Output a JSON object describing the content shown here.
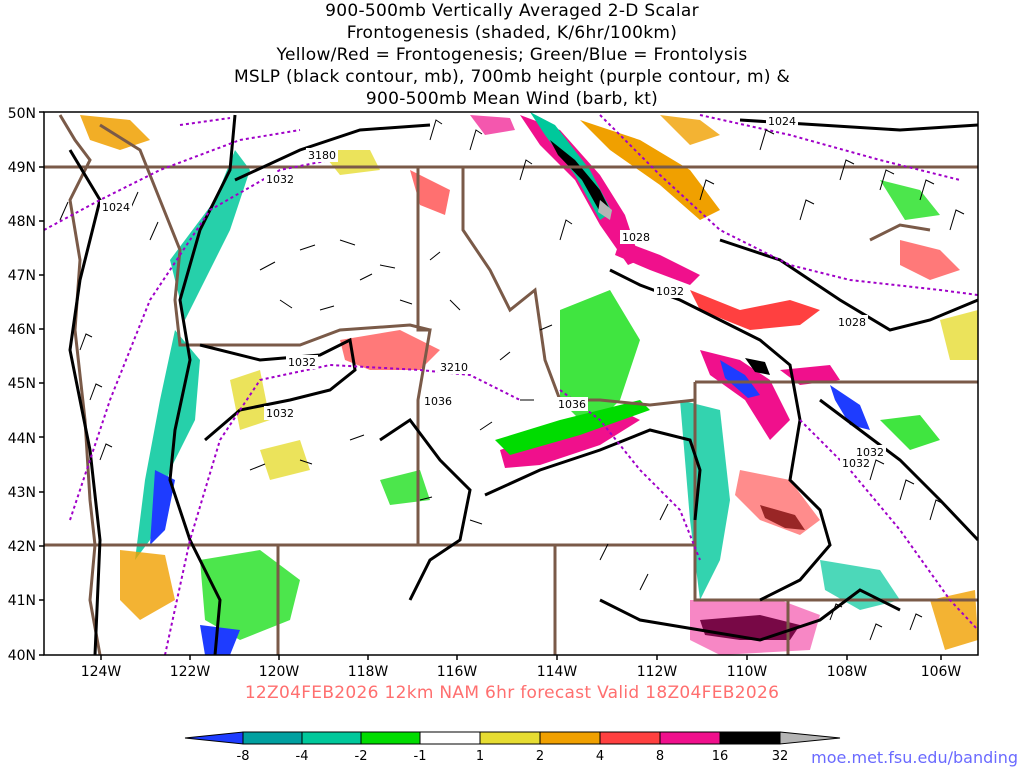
{
  "title_lines": [
    "900-500mb Vertically Averaged 2-D Scalar",
    "Frontogenesis (shaded, K/6hr/100km)",
    "Yellow/Red = Frontogenesis;  Green/Blue = Frontolysis",
    "MSLP (black contour, mb), 700mb height (purple contour, m) &",
    "900-500mb Mean Wind (barb, kt)"
  ],
  "lat_labels": [
    "50N",
    "49N",
    "48N",
    "47N",
    "46N",
    "45N",
    "44N",
    "43N",
    "42N",
    "41N",
    "40N"
  ],
  "lon_labels": [
    "124W",
    "122W",
    "120W",
    "118W",
    "116W",
    "114W",
    "112W",
    "110W",
    "108W",
    "106W"
  ],
  "valid_text": "12Z04FEB2026  12km NAM 6hr forecast Valid 18Z04FEB2026",
  "credit": "moe.met.fsu.edu/banding",
  "contour_labels": {
    "mslp": [
      "1024",
      "1032",
      "1028",
      "1032",
      "1028",
      "1032",
      "1036",
      "1036",
      "1032",
      "1032",
      "1032",
      "1024"
    ],
    "height": [
      "3180",
      "3210"
    ]
  },
  "colorbar": {
    "ticks": [
      "-8",
      "-4",
      "-2",
      "-1",
      "1",
      "2",
      "4",
      "8",
      "16",
      "32"
    ],
    "colors": [
      "#1e3cff",
      "#00a0a0",
      "#00c89b",
      "#00dc00",
      "#ffffff",
      "#e6dc32",
      "#f0a000",
      "#ff4040",
      "#f0108c",
      "#000000",
      "#b4b4b4"
    ]
  },
  "colors": {
    "mslp_contour": "#000000",
    "height_contour": "#a000c8",
    "borders": "#7a5a48",
    "valid_text": "#ff6f6f",
    "credit": "#6a6aff"
  }
}
